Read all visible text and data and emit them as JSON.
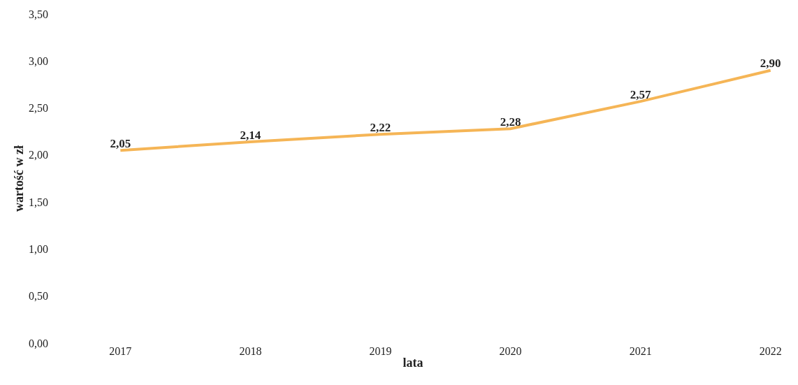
{
  "chart_data": {
    "type": "line",
    "xlabel": "lata",
    "ylabel": "wartość w zł",
    "categories": [
      "2017",
      "2018",
      "2019",
      "2020",
      "2021",
      "2022"
    ],
    "series": [
      {
        "color": "#f5b556",
        "values": [
          2.05,
          2.14,
          2.22,
          2.28,
          2.57,
          2.9
        ],
        "value_labels": [
          "2,05",
          "2,14",
          "2,22",
          "2,28",
          "2,57",
          "2,90"
        ]
      }
    ],
    "ylim": [
      0,
      3.5
    ],
    "yticks": [
      {
        "value": 0,
        "label": "0,00"
      },
      {
        "value": 0.5,
        "label": "0,50"
      },
      {
        "value": 1,
        "label": "1,00"
      },
      {
        "value": 1.5,
        "label": "1,50"
      },
      {
        "value": 2,
        "label": "2,00"
      },
      {
        "value": 2.5,
        "label": "2,50"
      },
      {
        "value": 3,
        "label": "3,00"
      },
      {
        "value": 3.5,
        "label": "3,50"
      }
    ],
    "legend": false,
    "marker": "none",
    "line_style": "solid"
  }
}
